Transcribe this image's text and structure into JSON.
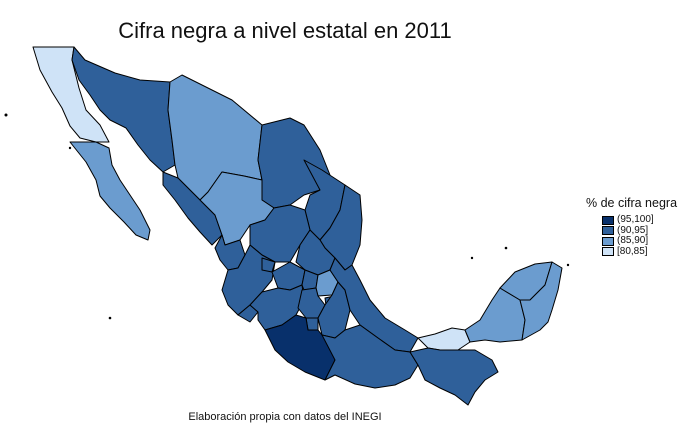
{
  "title": "Cifra negra a nivel estatal en 2011",
  "caption": "Elaboración propia con datos del INEGI",
  "legend": {
    "title": "% de cifra negra",
    "position": "right",
    "items": [
      {
        "label": "(95,100]",
        "color": "#08306b"
      },
      {
        "label": "(90,95]",
        "color": "#2f609a"
      },
      {
        "label": "(85,90]",
        "color": "#6b9ccf"
      },
      {
        "label": "[80,85]",
        "color": "#cfe3f7"
      }
    ]
  },
  "colors": {
    "darkest": "#08306b",
    "dark": "#2f609a",
    "medium": "#6b9ccf",
    "light": "#cfe3f7",
    "border": "#000000"
  }
}
